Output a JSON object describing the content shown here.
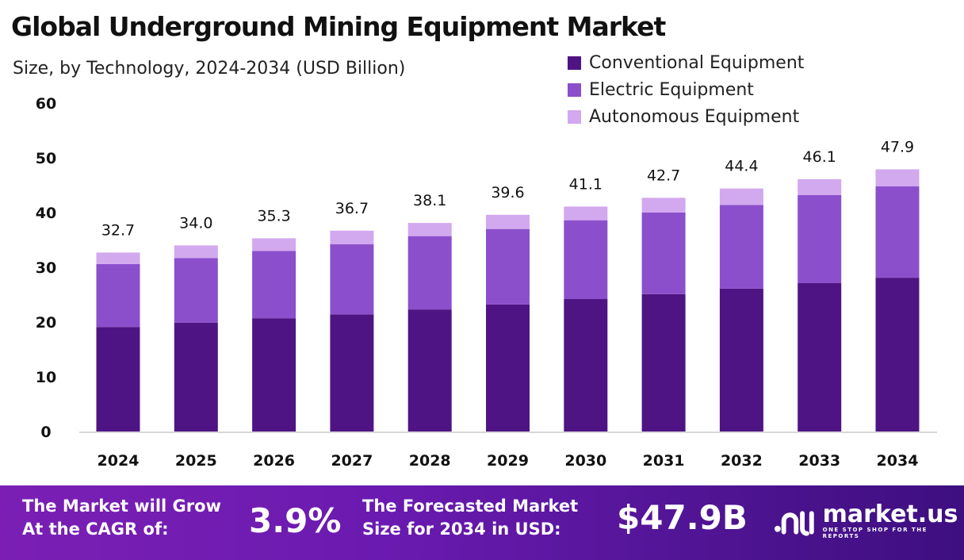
{
  "chart_data": {
    "type": "bar",
    "stacked": true,
    "title": "Global Underground Mining Equipment Market",
    "subtitle": "Size, by Technology, 2024-2034 (USD Billion)",
    "categories": [
      "2024",
      "2025",
      "2026",
      "2027",
      "2028",
      "2029",
      "2030",
      "2031",
      "2032",
      "2033",
      "2034"
    ],
    "series": [
      {
        "name": "Conventional Equipment",
        "color": "#4f1483",
        "values": [
          19.1,
          19.9,
          20.7,
          21.4,
          22.3,
          23.2,
          24.2,
          25.1,
          26.1,
          27.1,
          28.1
        ]
      },
      {
        "name": "Electric Equipment",
        "color": "#8b4fcc",
        "values": [
          11.5,
          11.8,
          12.3,
          12.8,
          13.4,
          13.8,
          14.4,
          14.9,
          15.3,
          16.1,
          16.7
        ]
      },
      {
        "name": "Autonomous Equipment",
        "color": "#d2a8ee",
        "values": [
          2.1,
          2.3,
          2.3,
          2.5,
          2.4,
          2.6,
          2.5,
          2.7,
          3.0,
          2.9,
          3.1
        ]
      }
    ],
    "totals": [
      "32.7",
      "34.0",
      "35.3",
      "36.7",
      "38.1",
      "39.6",
      "41.1",
      "42.7",
      "44.4",
      "46.1",
      "47.9"
    ],
    "ylim": [
      0,
      60
    ],
    "yticks": [
      "0",
      "10",
      "20",
      "30",
      "40",
      "50",
      "60"
    ],
    "grid": false,
    "legend": "top-right",
    "xlabel": "",
    "ylabel": ""
  },
  "banner": {
    "cagr_label_1": "The Market will Grow",
    "cagr_label_2": "At the CAGR of:",
    "cagr_value": "3.9%",
    "forecast_label_1": "The Forecasted Market",
    "forecast_label_2": "Size for 2034 in USD:",
    "forecast_value": "$47.9B",
    "logo_name": "market.us",
    "logo_tagline": "ONE STOP SHOP FOR THE REPORTS"
  }
}
